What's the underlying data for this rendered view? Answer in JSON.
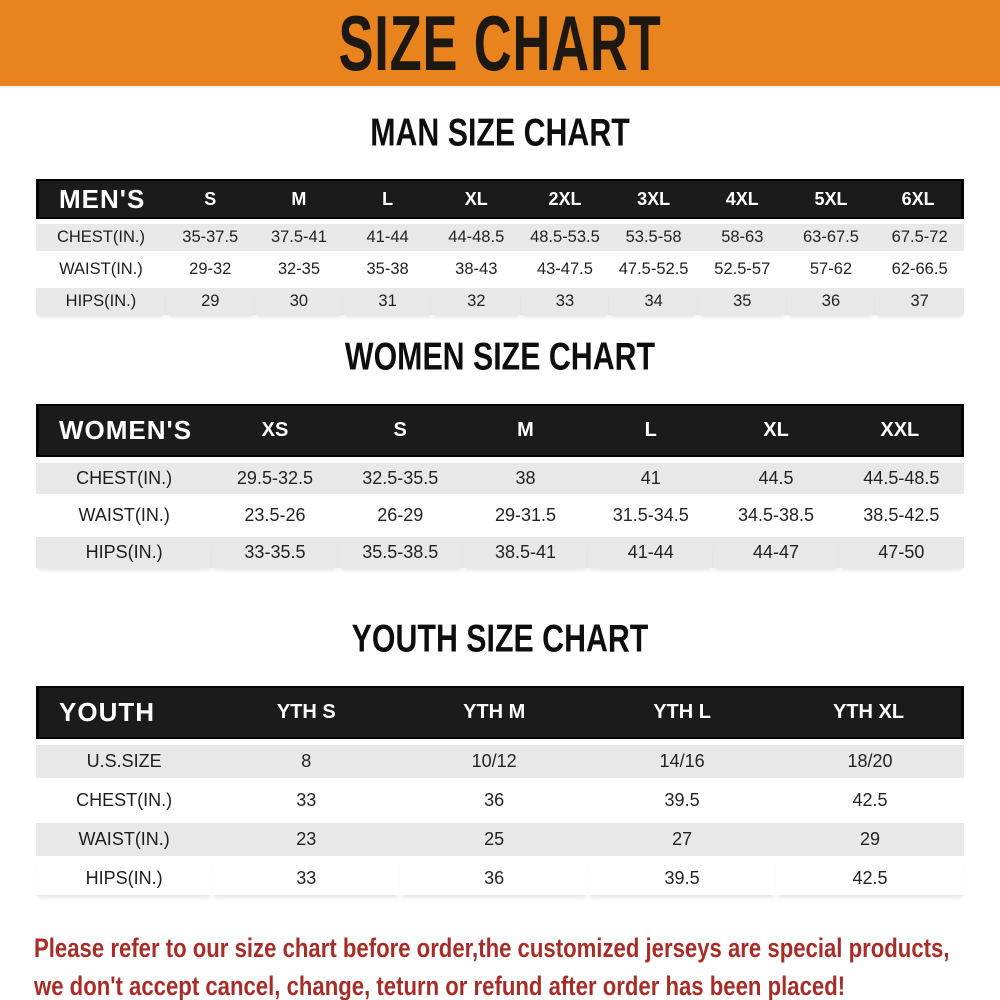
{
  "banner": {
    "title": "SIZE CHART"
  },
  "men": {
    "heading": "MAN SIZE CHART",
    "corner": "MEN'S",
    "columns": [
      "S",
      "M",
      "L",
      "XL",
      "2XL",
      "3XL",
      "4XL",
      "5XL",
      "6XL"
    ],
    "rows": [
      {
        "label": "CHEST(IN.)",
        "values": [
          "35-37.5",
          "37.5-41",
          "41-44",
          "44-48.5",
          "48.5-53.5",
          "53.5-58",
          "58-63",
          "63-67.5",
          "67.5-72"
        ]
      },
      {
        "label": "WAIST(IN.)",
        "values": [
          "29-32",
          "32-35",
          "35-38",
          "38-43",
          "43-47.5",
          "47.5-52.5",
          "52.5-57",
          "57-62",
          "62-66.5"
        ]
      },
      {
        "label": "HIPS(IN.)",
        "values": [
          "29",
          "30",
          "31",
          "32",
          "33",
          "34",
          "35",
          "36",
          "37"
        ]
      }
    ]
  },
  "women": {
    "heading": "WOMEN SIZE CHART",
    "corner": "WOMEN'S",
    "columns": [
      "XS",
      "S",
      "M",
      "L",
      "XL",
      "XXL"
    ],
    "rows": [
      {
        "label": "CHEST(IN.)",
        "values": [
          "29.5-32.5",
          "32.5-35.5",
          "38",
          "41",
          "44.5",
          "44.5-48.5"
        ]
      },
      {
        "label": "WAIST(IN.)",
        "values": [
          "23.5-26",
          "26-29",
          "29-31.5",
          "31.5-34.5",
          "34.5-38.5",
          "38.5-42.5"
        ]
      },
      {
        "label": "HIPS(IN.)",
        "values": [
          "33-35.5",
          "35.5-38.5",
          "38.5-41",
          "41-44",
          "44-47",
          "47-50"
        ]
      }
    ]
  },
  "youth": {
    "heading": "YOUTH SIZE CHART",
    "corner": "YOUTH",
    "columns": [
      "YTH S",
      "YTH M",
      "YTH L",
      "YTH XL"
    ],
    "rows": [
      {
        "label": "U.S.SIZE",
        "values": [
          "8",
          "10/12",
          "14/16",
          "18/20"
        ]
      },
      {
        "label": "CHEST(IN.)",
        "values": [
          "33",
          "36",
          "39.5",
          "42.5"
        ]
      },
      {
        "label": "WAIST(IN.)",
        "values": [
          "23",
          "25",
          "27",
          "29"
        ]
      },
      {
        "label": "HIPS(IN.)",
        "values": [
          "33",
          "36",
          "39.5",
          "42.5"
        ]
      }
    ]
  },
  "footer": {
    "line1": "Please refer to our size chart before order,the customized jerseys are special products,",
    "line2": "we don't accept cancel, change, teturn or refund after order has been placed!"
  },
  "colors": {
    "banner_bg": "#E8831E",
    "table_header_bg": "#1B1B1B",
    "row_alt_bg": "#E8E8E8",
    "footer_text": "#A72E28"
  }
}
